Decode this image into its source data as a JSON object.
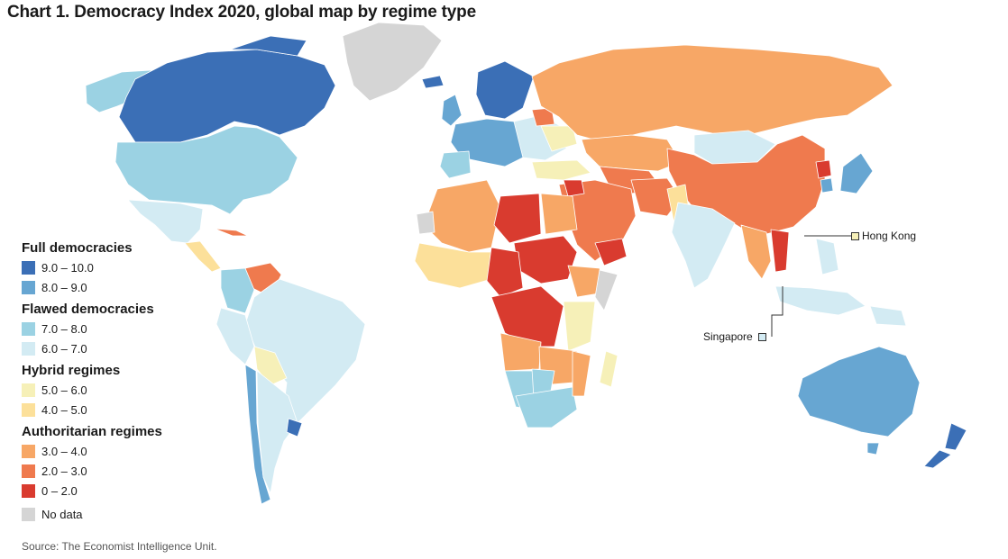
{
  "title": "Chart 1. Democracy Index 2020, global map by regime type",
  "legend": {
    "groups": [
      {
        "title": "Full democracies",
        "items": [
          {
            "label": "9.0 – 10.0",
            "color": "#3b6fb6"
          },
          {
            "label": "8.0 – 9.0",
            "color": "#67a6d2"
          }
        ]
      },
      {
        "title": "Flawed democracies",
        "items": [
          {
            "label": "7.0 – 8.0",
            "color": "#9bd2e3"
          },
          {
            "label": "6.0 – 7.0",
            "color": "#d3ebf3"
          }
        ]
      },
      {
        "title": "Hybrid regimes",
        "items": [
          {
            "label": "5.0 – 6.0",
            "color": "#f6f0b8"
          },
          {
            "label": "4.0 – 5.0",
            "color": "#fce09a"
          }
        ]
      },
      {
        "title": "Authoritarian regimes",
        "items": [
          {
            "label": "3.0 – 4.0",
            "color": "#f7a766"
          },
          {
            "label": "2.0 – 3.0",
            "color": "#ef7a4e"
          },
          {
            "label": "0 – 2.0",
            "color": "#d93b2f"
          }
        ]
      }
    ],
    "no_data": {
      "label": "No data",
      "color": "#d5d5d5"
    }
  },
  "callouts": {
    "hong_kong": {
      "label": "Hong Kong",
      "color": "#f6f0b8"
    },
    "singapore": {
      "label": "Singapore",
      "color": "#d3ebf3"
    }
  },
  "source": "Source: The Economist Intelligence Unit."
}
